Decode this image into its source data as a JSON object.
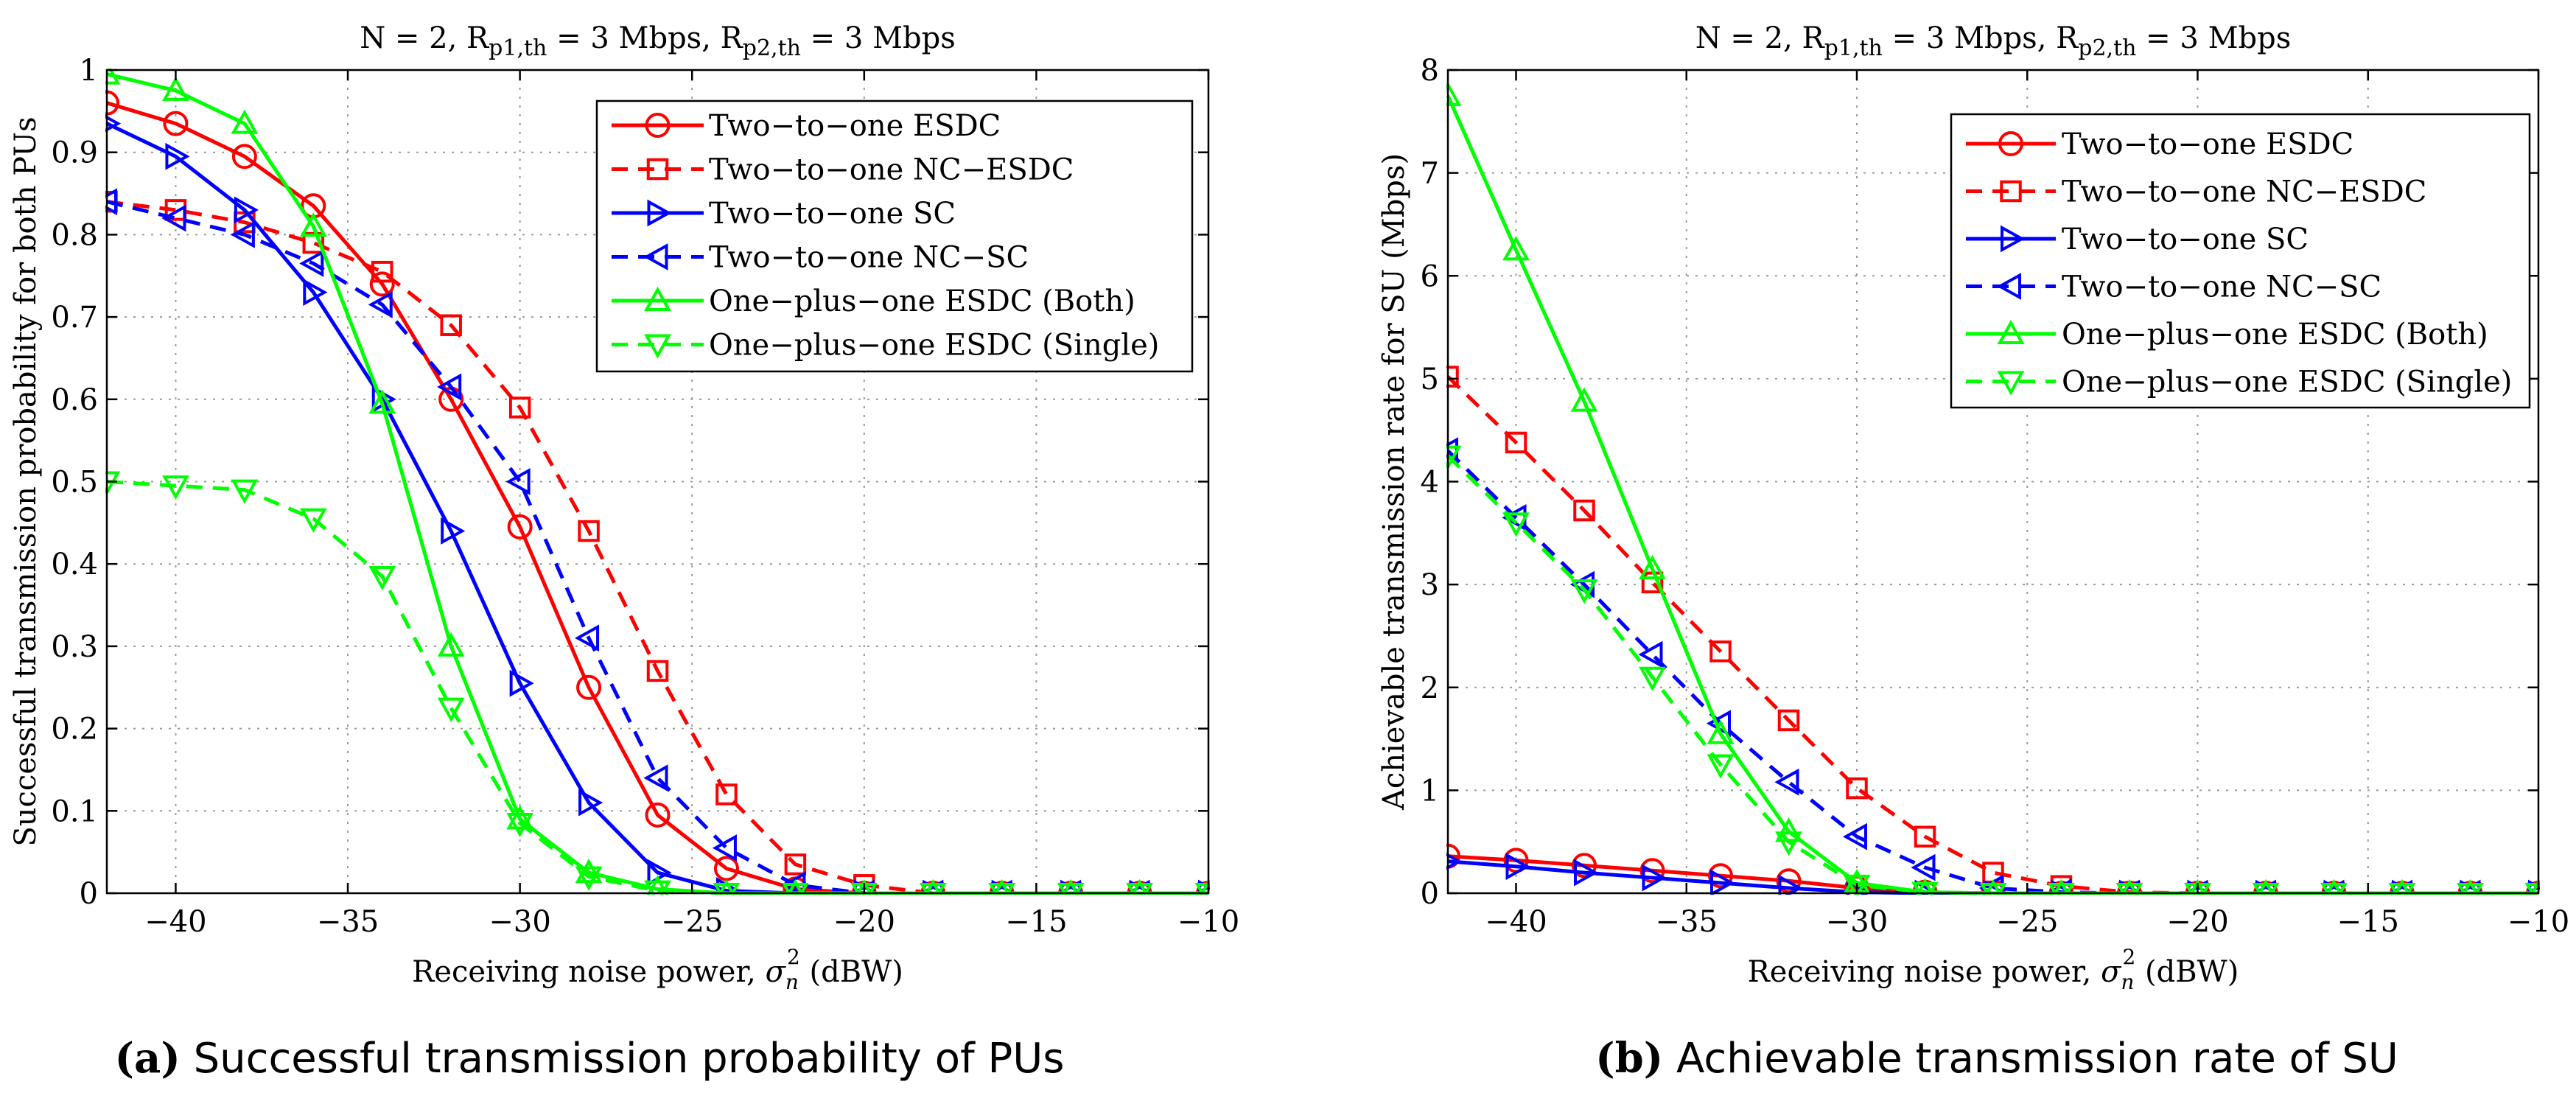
{
  "chart_data": [
    {
      "type": "line",
      "title": "N = 2, R_p1,th = 3 Mbps, R_p2,th = 3 Mbps",
      "title_parts": {
        "prefix": "N = 2, R",
        "sub1": "p1,th",
        "mid": " = 3 Mbps, R",
        "sub2": "p2,th",
        "suffix": " = 3 Mbps"
      },
      "xlabel": "Receiving noise power, σ_n^2 (dBW)",
      "xlabel_parts": {
        "prefix": "Receiving noise power, ",
        "sym": "σ",
        "sub": "n",
        "sup": "2",
        "suffix": " (dBW)"
      },
      "ylabel": "Successful transmission probability for both PUs",
      "xlim": [
        -42,
        -10
      ],
      "ylim": [
        0,
        1
      ],
      "xticks": [
        -40,
        -35,
        -30,
        -25,
        -20,
        -15,
        -10
      ],
      "xtick_labels": [
        "−40",
        "−35",
        "−30",
        "−25",
        "−20",
        "−15",
        "−10"
      ],
      "yticks": [
        0,
        0.1,
        0.2,
        0.3,
        0.4,
        0.5,
        0.6,
        0.7,
        0.8,
        0.9,
        1
      ],
      "ytick_labels": [
        "0",
        "0.1",
        "0.2",
        "0.3",
        "0.4",
        "0.5",
        "0.6",
        "0.7",
        "0.8",
        "0.9",
        "1"
      ],
      "grid": true,
      "legend_position": "top-right",
      "caption": {
        "letter": "(a)",
        "text": "Successful transmission probability of PUs"
      },
      "x": [
        -42,
        -40,
        -38,
        -36,
        -34,
        -32,
        -30,
        -28,
        -26,
        -24,
        -22,
        -20,
        -18,
        -16,
        -14,
        -12,
        -10
      ],
      "series": [
        {
          "name": "Two−to−one ESDC",
          "color": "#ff0000",
          "dash": "solid",
          "marker": "circle",
          "values": [
            0.96,
            0.935,
            0.895,
            0.835,
            0.74,
            0.6,
            0.445,
            0.25,
            0.095,
            0.03,
            0.005,
            0,
            0,
            0,
            0,
            0,
            0
          ]
        },
        {
          "name": "Two−to−one NC−ESDC",
          "color": "#ff0000",
          "dash": "dashed",
          "marker": "square",
          "values": [
            0.84,
            0.83,
            0.815,
            0.79,
            0.755,
            0.69,
            0.59,
            0.44,
            0.27,
            0.12,
            0.035,
            0.01,
            0,
            0,
            0,
            0,
            0
          ]
        },
        {
          "name": "Two−to−one SC",
          "color": "#0000ff",
          "dash": "solid",
          "marker": "triangle-right",
          "values": [
            0.935,
            0.895,
            0.83,
            0.73,
            0.6,
            0.44,
            0.255,
            0.11,
            0.025,
            0.003,
            0,
            0,
            0,
            0,
            0,
            0,
            0
          ]
        },
        {
          "name": "Two−to−one NC−SC",
          "color": "#0000ff",
          "dash": "dashed",
          "marker": "triangle-left",
          "values": [
            0.84,
            0.82,
            0.8,
            0.765,
            0.715,
            0.615,
            0.5,
            0.31,
            0.14,
            0.055,
            0.01,
            0,
            0,
            0,
            0,
            0,
            0
          ]
        },
        {
          "name": "One−plus−one ESDC (Both)",
          "color": "#00ff00",
          "dash": "solid",
          "marker": "triangle-up",
          "values": [
            0.995,
            0.975,
            0.935,
            0.81,
            0.595,
            0.3,
            0.09,
            0.025,
            0.005,
            0,
            0,
            0,
            0,
            0,
            0,
            0,
            0
          ]
        },
        {
          "name": "One−plus−one ESDC (Single)",
          "color": "#00ff00",
          "dash": "dashed",
          "marker": "triangle-down",
          "values": [
            0.5,
            0.495,
            0.49,
            0.455,
            0.385,
            0.225,
            0.085,
            0.02,
            0.003,
            0,
            0,
            0,
            0,
            0,
            0,
            0,
            0
          ]
        }
      ]
    },
    {
      "type": "line",
      "title": "N = 2, R_p1,th = 3 Mbps, R_p2,th = 3 Mbps",
      "title_parts": {
        "prefix": "N = 2, R",
        "sub1": "p1,th",
        "mid": " = 3 Mbps, R",
        "sub2": "p2,th",
        "suffix": " = 3 Mbps"
      },
      "xlabel": "Receiving noise power, σ_n^2 (dBW)",
      "xlabel_parts": {
        "prefix": "Receiving noise power, ",
        "sym": "σ",
        "sub": "n",
        "sup": "2",
        "suffix": " (dBW)"
      },
      "ylabel": "Achievable transmission rate for SU (Mbps)",
      "xlim": [
        -42,
        -10
      ],
      "ylim": [
        0,
        8
      ],
      "xticks": [
        -40,
        -35,
        -30,
        -25,
        -20,
        -15,
        -10
      ],
      "xtick_labels": [
        "−40",
        "−35",
        "−30",
        "−25",
        "−20",
        "−15",
        "−10"
      ],
      "yticks": [
        0,
        1,
        2,
        3,
        4,
        5,
        6,
        7,
        8
      ],
      "ytick_labels": [
        "0",
        "1",
        "2",
        "3",
        "4",
        "5",
        "6",
        "7",
        "8"
      ],
      "grid": true,
      "legend_position": "top-right",
      "caption": {
        "letter": "(b)",
        "text": "Achievable transmission rate of SU"
      },
      "x": [
        -42,
        -40,
        -38,
        -36,
        -34,
        -32,
        -30,
        -28,
        -26,
        -24,
        -22,
        -20,
        -18,
        -16,
        -14,
        -12,
        -10
      ],
      "series": [
        {
          "name": "Two−to−one ESDC",
          "color": "#ff0000",
          "dash": "solid",
          "marker": "circle",
          "values": [
            0.36,
            0.32,
            0.27,
            0.22,
            0.17,
            0.12,
            0.05,
            0.01,
            0,
            0,
            0,
            0,
            0,
            0,
            0,
            0,
            0
          ]
        },
        {
          "name": "Two−to−one NC−ESDC",
          "color": "#ff0000",
          "dash": "dashed",
          "marker": "square",
          "values": [
            5.02,
            4.38,
            3.72,
            3.02,
            2.35,
            1.68,
            1.02,
            0.55,
            0.2,
            0.07,
            0.01,
            0,
            0,
            0,
            0,
            0,
            0
          ]
        },
        {
          "name": "Two−to−one SC",
          "color": "#0000ff",
          "dash": "solid",
          "marker": "triangle-right",
          "values": [
            0.31,
            0.26,
            0.2,
            0.15,
            0.1,
            0.05,
            0.01,
            0,
            0,
            0,
            0,
            0,
            0,
            0,
            0,
            0,
            0
          ]
        },
        {
          "name": "Two−to−one NC−SC",
          "color": "#0000ff",
          "dash": "dashed",
          "marker": "triangle-left",
          "values": [
            4.3,
            3.65,
            3.0,
            2.32,
            1.65,
            1.08,
            0.55,
            0.25,
            0.05,
            0.01,
            0,
            0,
            0,
            0,
            0,
            0,
            0
          ]
        },
        {
          "name": "One−plus−one ESDC (Both)",
          "color": "#00ff00",
          "dash": "solid",
          "marker": "triangle-up",
          "values": [
            7.75,
            6.25,
            4.78,
            3.15,
            1.55,
            0.6,
            0.1,
            0.01,
            0,
            0,
            0,
            0,
            0,
            0,
            0,
            0,
            0
          ]
        },
        {
          "name": "One−plus−one ESDC (Single)",
          "color": "#00ff00",
          "dash": "dashed",
          "marker": "triangle-down",
          "values": [
            4.25,
            3.6,
            2.95,
            2.1,
            1.25,
            0.5,
            0.08,
            0.01,
            0,
            0,
            0,
            0,
            0,
            0,
            0,
            0,
            0
          ]
        }
      ]
    }
  ]
}
